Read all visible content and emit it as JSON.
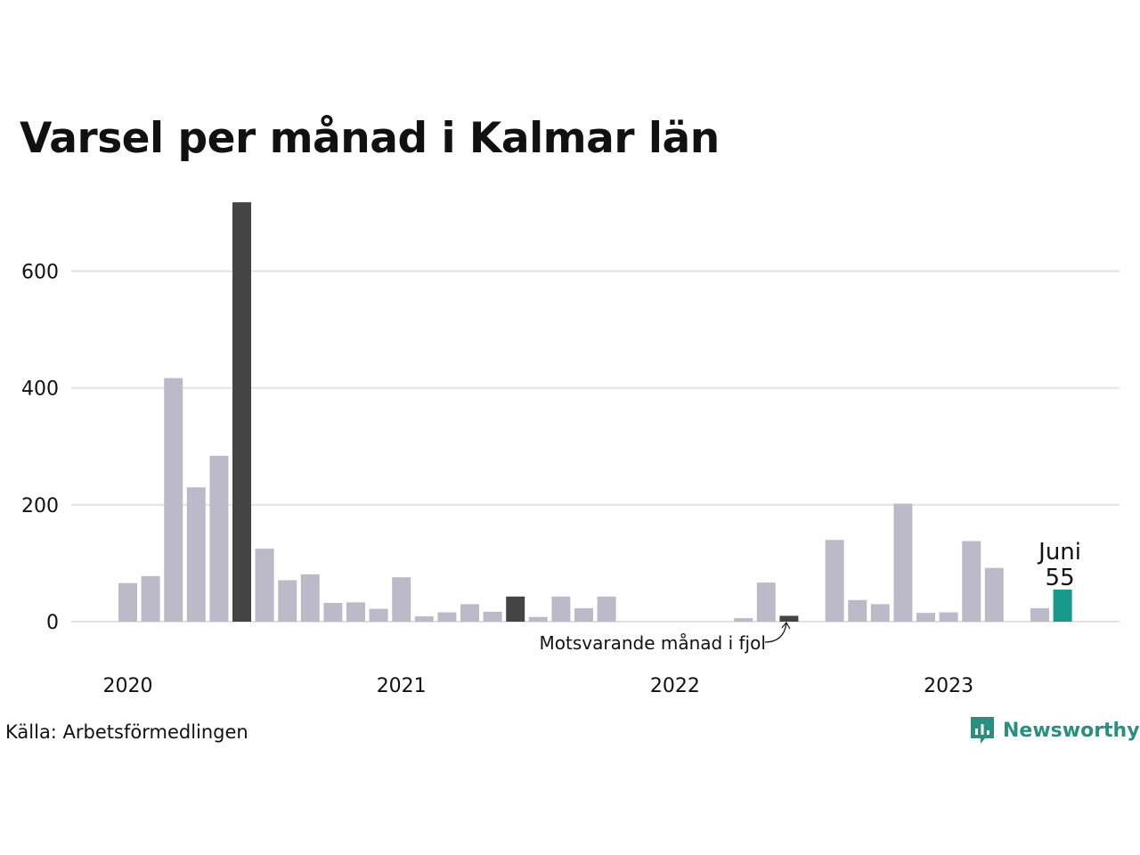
{
  "title": "Varsel per månad i Kalmar län",
  "source": "Källa: Arbetsförmedlingen",
  "brand": "Newsworthy",
  "colors": {
    "bar": "#bcbac8",
    "bar_same_month": "#444444",
    "bar_current": "#179a8b",
    "grid": "#e2e2e2",
    "brand": "#2a8f7f"
  },
  "chart_data": {
    "type": "bar",
    "ylim": [
      0,
      720
    ],
    "yticks": [
      0,
      200,
      400,
      600
    ],
    "grid": true,
    "xlabel": "",
    "ylabel": "",
    "year_labels": [
      {
        "label": "2020",
        "index": 0
      },
      {
        "label": "2021",
        "index": 12
      },
      {
        "label": "2022",
        "index": 24
      },
      {
        "label": "2023",
        "index": 36
      }
    ],
    "categories": [
      "2020-01",
      "2020-02",
      "2020-03",
      "2020-04",
      "2020-05",
      "2020-06",
      "2020-07",
      "2020-08",
      "2020-09",
      "2020-10",
      "2020-11",
      "2020-12",
      "2021-01",
      "2021-02",
      "2021-03",
      "2021-04",
      "2021-05",
      "2021-06",
      "2021-07",
      "2021-08",
      "2021-09",
      "2021-10",
      "2021-11",
      "2021-12",
      "2022-01",
      "2022-02",
      "2022-03",
      "2022-04",
      "2022-05",
      "2022-06",
      "2022-07",
      "2022-08",
      "2022-09",
      "2022-10",
      "2022-11",
      "2022-12",
      "2023-01",
      "2023-02",
      "2023-03",
      "2023-04",
      "2023-05",
      "2023-06"
    ],
    "values": [
      66,
      78,
      417,
      230,
      284,
      718,
      125,
      71,
      81,
      32,
      33,
      22,
      76,
      9,
      16,
      30,
      17,
      43,
      8,
      43,
      23,
      43,
      0,
      0,
      0,
      0,
      0,
      6,
      67,
      10,
      0,
      140,
      37,
      30,
      202,
      15,
      16,
      138,
      92,
      0,
      23,
      55
    ],
    "highlight_same_month": [
      5,
      17,
      29
    ],
    "highlight_current": 41,
    "annotations": {
      "current_label": "Juni",
      "current_value": "55",
      "same_month_label": "Motsvarande månad i fjol"
    }
  }
}
